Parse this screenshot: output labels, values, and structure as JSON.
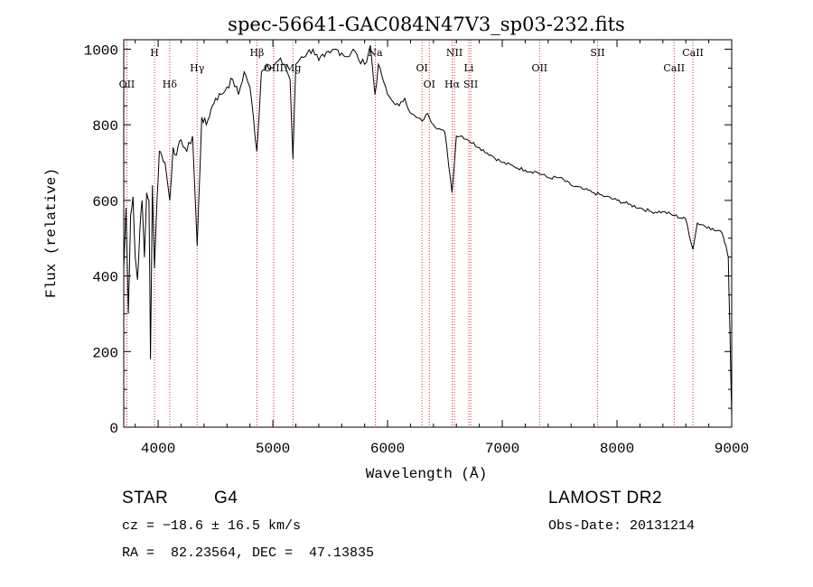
{
  "chart_data": {
    "type": "line",
    "title": "spec-56641-GAC084N47V3_sp03-232.fits",
    "xlabel": "Wavelength (Å)",
    "ylabel": "Flux (relative)",
    "xlim": [
      3700,
      9000
    ],
    "ylim": [
      0,
      1025
    ],
    "x_ticks": [
      4000,
      5000,
      6000,
      7000,
      8000,
      9000
    ],
    "y_ticks": [
      0,
      200,
      400,
      600,
      800,
      1000
    ],
    "grid": false,
    "series": [
      {
        "x": [
          3700,
          3720,
          3740,
          3760,
          3780,
          3800,
          3820,
          3840,
          3860,
          3880,
          3900,
          3920,
          3933,
          3950,
          3968,
          3990,
          4010,
          4030,
          4060,
          4101,
          4130,
          4160,
          4200,
          4250,
          4300,
          4340,
          4380,
          4420,
          4460,
          4500,
          4550,
          4600,
          4650,
          4700,
          4750,
          4800,
          4861,
          4900,
          4950,
          5000,
          5050,
          5100,
          5150,
          5175,
          5200,
          5250,
          5300,
          5350,
          5400,
          5450,
          5500,
          5550,
          5600,
          5650,
          5700,
          5750,
          5800,
          5850,
          5890,
          5920,
          5950,
          6000,
          6050,
          6100,
          6150,
          6200,
          6250,
          6300,
          6350,
          6400,
          6450,
          6500,
          6562,
          6600,
          6650,
          6700,
          6800,
          6900,
          7000,
          7100,
          7200,
          7300,
          7400,
          7500,
          7600,
          7700,
          7800,
          7900,
          8000,
          8100,
          8200,
          8300,
          8400,
          8500,
          8600,
          8662,
          8700,
          8800,
          8850,
          8900,
          8930,
          8950,
          8970,
          8985,
          9000
        ],
        "y": [
          420,
          580,
          300,
          560,
          610,
          450,
          390,
          520,
          600,
          450,
          620,
          600,
          180,
          640,
          420,
          600,
          730,
          720,
          700,
          600,
          740,
          720,
          760,
          730,
          770,
          480,
          820,
          800,
          840,
          870,
          880,
          900,
          920,
          880,
          940,
          900,
          730,
          940,
          960,
          950,
          970,
          960,
          920,
          710,
          960,
          980,
          990,
          1000,
          970,
          980,
          990,
          1000,
          990,
          980,
          1000,
          970,
          960,
          1010,
          880,
          960,
          930,
          880,
          860,
          850,
          870,
          830,
          820,
          810,
          830,
          800,
          790,
          780,
          620,
          770,
          770,
          760,
          740,
          720,
          700,
          690,
          680,
          675,
          660,
          660,
          640,
          630,
          620,
          610,
          600,
          590,
          580,
          570,
          570,
          560,
          550,
          470,
          540,
          530,
          520,
          520,
          500,
          480,
          450,
          250,
          30
        ]
      }
    ],
    "lines": [
      {
        "label": "OII",
        "x": 3727,
        "pos": "low"
      },
      {
        "label": "H",
        "x": 3968,
        "pos": "high"
      },
      {
        "label": "Hδ",
        "x": 4101,
        "pos": "low"
      },
      {
        "label": "Hγ",
        "x": 4340,
        "pos": "mid"
      },
      {
        "label": "Hβ",
        "x": 4861,
        "pos": "high"
      },
      {
        "label": "OIII",
        "x": 5007,
        "pos": "mid"
      },
      {
        "label": "Mg",
        "x": 5175,
        "pos": "mid"
      },
      {
        "label": "Na",
        "x": 5893,
        "pos": "high"
      },
      {
        "label": "OI",
        "x": 6300,
        "pos": "mid"
      },
      {
        "label": "OI",
        "x": 6364,
        "pos": "low"
      },
      {
        "label": "NII",
        "x": 6583,
        "pos": "high"
      },
      {
        "label": "Hα",
        "x": 6563,
        "pos": "low"
      },
      {
        "label": "Li",
        "x": 6708,
        "pos": "mid"
      },
      {
        "label": "SII",
        "x": 6725,
        "pos": "low"
      },
      {
        "label": "OII",
        "x": 7325,
        "pos": "mid"
      },
      {
        "label": "SII",
        "x": 7830,
        "pos": "high"
      },
      {
        "label": "CaII",
        "x": 8498,
        "pos": "mid"
      },
      {
        "label": "CaII",
        "x": 8662,
        "pos": "high"
      }
    ]
  },
  "info": {
    "class": "STAR",
    "subclass": "G4",
    "survey": "LAMOST DR2",
    "cz": "cz = −18.6 ± 16.5 km/s",
    "obs_date": "Obs-Date: 20131214",
    "coords": "RA =  82.23564, DEC =  47.13835"
  },
  "colors": {
    "spectrum": "#000000",
    "line_markers": "#e03030"
  }
}
